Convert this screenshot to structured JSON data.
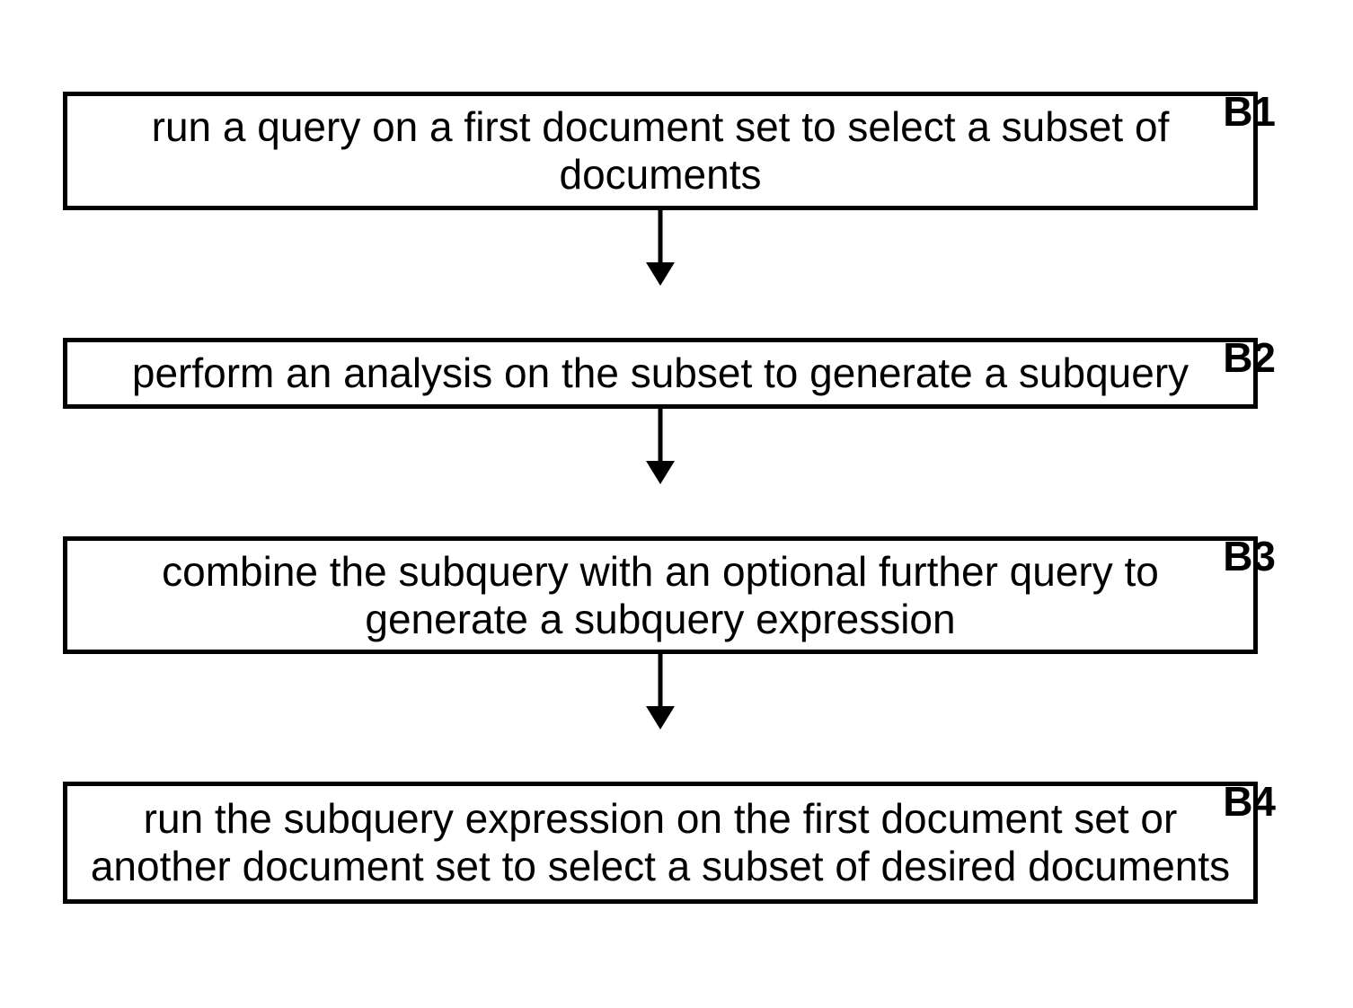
{
  "flowchart": {
    "type": "flowchart",
    "direction": "vertical",
    "background_color": "#ffffff",
    "border_color": "#000000",
    "border_width": 5,
    "text_color": "#000000",
    "font_size": 46,
    "label_font_size": 46,
    "label_font_weight": "bold",
    "arrow_color": "#000000",
    "arrow_line_width": 5,
    "steps": [
      {
        "id": "B1",
        "label": "B1",
        "text": "run a query on a first document set to select a subset of documents"
      },
      {
        "id": "B2",
        "label": "B2",
        "text": "perform an analysis on the subset to generate a subquery"
      },
      {
        "id": "B3",
        "label": "B3",
        "text": "combine the subquery with an optional further query to generate a subquery expression"
      },
      {
        "id": "B4",
        "label": "B4",
        "text": "run the subquery expression on the first document set or another document set to select a subset of desired documents"
      }
    ]
  }
}
